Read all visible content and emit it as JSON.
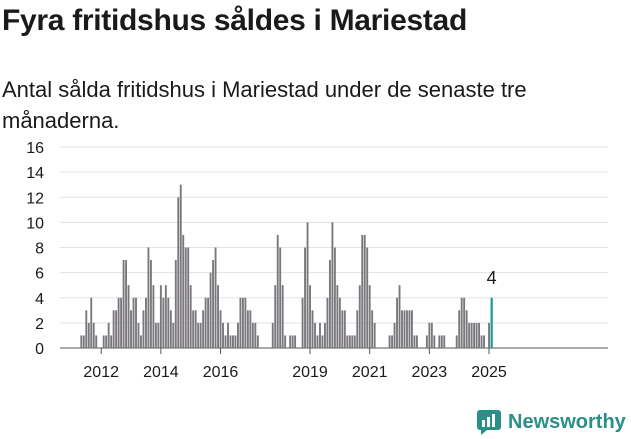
{
  "header": {
    "title": "Fyra fritidshus såldes i Mariestad",
    "subtitle": "Antal sålda fritidshus i Mariestad under de senaste tre månaderna."
  },
  "brand": {
    "name": "Newsworthy",
    "icon": "newsworthy-logo-icon",
    "color": "#2a8f86"
  },
  "colors": {
    "bar": "#7a787c",
    "highlight": "#1a9a94",
    "grid": "#e3e3e3"
  },
  "chart_data": {
    "type": "bar",
    "title": "Fyra fritidshus såldes i Mariestad",
    "subtitle": "Antal sålda fritidshus i Mariestad under de senaste tre månaderna.",
    "x_start": "2011-01",
    "x_label_ticks": [
      "2012",
      "2014",
      "2016",
      "2019",
      "2021",
      "2023",
      "2025"
    ],
    "y_ticks": [
      0,
      2,
      4,
      6,
      8,
      10,
      12,
      14,
      16
    ],
    "ylim": [
      0,
      16
    ],
    "grid": true,
    "legend": "none",
    "highlight": {
      "label": "4",
      "value": 4
    },
    "values": [
      0,
      0,
      0,
      0,
      0,
      0,
      0,
      0,
      0,
      1,
      1,
      3,
      2,
      4,
      2,
      1,
      0,
      0,
      1,
      1,
      2,
      1,
      3,
      3,
      4,
      4,
      7,
      7,
      5,
      3,
      4,
      4,
      2,
      1,
      3,
      4,
      8,
      7,
      5,
      2,
      2,
      5,
      4,
      5,
      4,
      3,
      2,
      7,
      12,
      13,
      9,
      8,
      8,
      5,
      3,
      3,
      2,
      2,
      3,
      4,
      4,
      6,
      7,
      8,
      5,
      3,
      2,
      1,
      2,
      1,
      1,
      1,
      2,
      4,
      4,
      4,
      3,
      3,
      2,
      2,
      1,
      0,
      0,
      0,
      0,
      0,
      2,
      5,
      9,
      8,
      5,
      1,
      0,
      1,
      1,
      1,
      0,
      0,
      4,
      8,
      10,
      5,
      3,
      2,
      1,
      2,
      1,
      2,
      4,
      7,
      10,
      8,
      5,
      4,
      3,
      3,
      1,
      1,
      1,
      1,
      3,
      5,
      9,
      9,
      8,
      5,
      3,
      2,
      0,
      0,
      0,
      0,
      0,
      1,
      1,
      2,
      4,
      5,
      3,
      3,
      3,
      3,
      3,
      1,
      1,
      0,
      0,
      0,
      1,
      2,
      2,
      1,
      0,
      1,
      1,
      1,
      0,
      0,
      0,
      0,
      1,
      3,
      4,
      4,
      3,
      2,
      2,
      2,
      2,
      2,
      1,
      1,
      0,
      2,
      4
    ]
  }
}
